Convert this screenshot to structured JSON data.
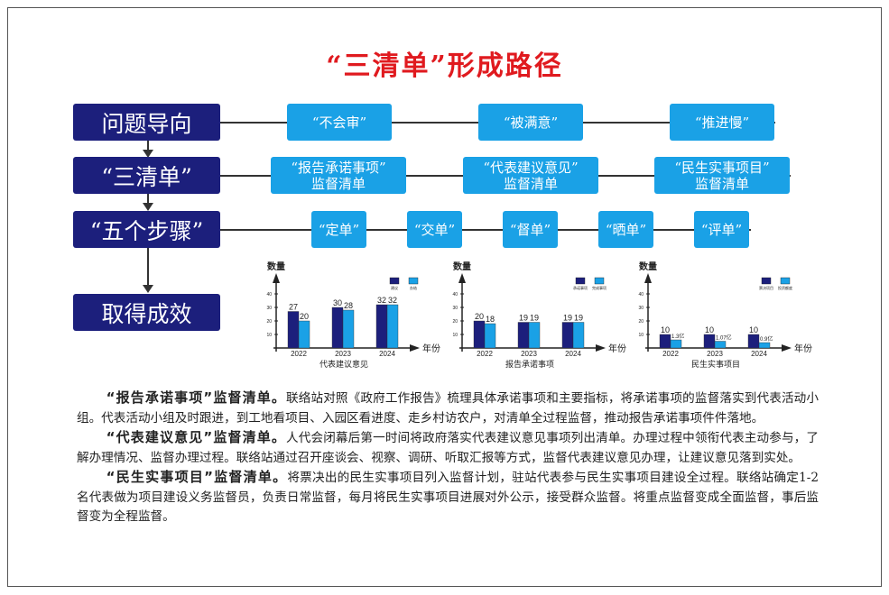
{
  "title": "“三清单”形成路径",
  "rows": [
    {
      "label": "问题导向",
      "items": [
        [
          "“不会审”"
        ],
        [
          "“被满意”"
        ],
        [
          "“推进慢”"
        ]
      ]
    },
    {
      "label": "“三清单”",
      "items": [
        [
          "“报告承诺事项”",
          "监督清单"
        ],
        [
          "“代表建议意见”",
          "监督清单"
        ],
        [
          "“民生实事项目”",
          "监督清单"
        ]
      ]
    },
    {
      "label": "“五个步骤”",
      "items": [
        [
          "“定单”"
        ],
        [
          "“交单”"
        ],
        [
          "“督单”"
        ],
        [
          "“晒单”"
        ],
        [
          "“评单”"
        ]
      ]
    },
    {
      "label": "取得成效"
    }
  ],
  "colors": {
    "navy": "#1c1f7c",
    "blue": "#1aa1e6",
    "red": "#e01a1f"
  },
  "chart_data": [
    {
      "type": "bar",
      "title": "代表建议意见",
      "ylabel": "数量",
      "xlabel": "年份",
      "categories": [
        "2022",
        "2023",
        "2024"
      ],
      "ylim": [
        0,
        45
      ],
      "yticks": [
        10,
        20,
        30,
        40
      ],
      "series": [
        {
          "name": "建议",
          "values": [
            27,
            30,
            32
          ],
          "labels": [
            "27",
            "30",
            "32"
          ]
        },
        {
          "name": "办结",
          "values": [
            20,
            28,
            32
          ],
          "labels": [
            "20",
            "28",
            "32"
          ]
        }
      ]
    },
    {
      "type": "bar",
      "title": "报告承诺事项",
      "ylabel": "数量",
      "xlabel": "年份",
      "categories": [
        "2022",
        "2023",
        "2024"
      ],
      "ylim": [
        0,
        45
      ],
      "yticks": [
        10,
        20,
        30,
        40
      ],
      "series": [
        {
          "name": "承诺事项",
          "values": [
            20,
            19,
            19
          ],
          "labels": [
            "20",
            "19",
            "19"
          ]
        },
        {
          "name": "完成事项",
          "values": [
            18,
            19,
            19
          ],
          "labels": [
            "18",
            "19",
            "19"
          ]
        }
      ]
    },
    {
      "type": "bar",
      "title": "民生实事项目",
      "ylabel": "数量",
      "xlabel": "年份",
      "categories": [
        "2022",
        "2023",
        "2024"
      ],
      "ylim": [
        0,
        45
      ],
      "yticks": [
        10,
        20,
        30,
        40
      ],
      "series": [
        {
          "name": "票决项目",
          "values": [
            10,
            10,
            10
          ],
          "labels": [
            "10",
            "10",
            "10"
          ]
        },
        {
          "name": "投资额度",
          "values": [
            6,
            5,
            4
          ],
          "labels": [
            "1.3亿",
            "1.07亿",
            "0.9亿"
          ]
        }
      ]
    }
  ],
  "paragraphs": [
    {
      "lead": "“报告承诺事项”监督清单。",
      "body": "联络站对照《政府工作报告》梳理具体承诺事项和主要指标，将承诺事项的监督落实到代表活动小组。代表活动小组及时跟进，到工地看项目、入园区看进度、走乡村访农户，对清单全过程监督，推动报告承诺事项件件落地。"
    },
    {
      "lead": "“代表建议意见”监督清单。",
      "body": "人代会闭幕后第一时间将政府落实代表建议意见事项列出清单。办理过程中领衔代表主动参与，了解办理情况、监督办理过程。联络站通过召开座谈会、视察、调研、听取汇报等方式，监督代表建议意见办理，让建议意见落到实处。"
    },
    {
      "lead": "“民生实事项目”监督清单。",
      "body": "将票决出的民生实事项目列入监督计划，驻站代表参与民生实事项目建设全过程。联络站确定1-2名代表做为项目建设义务监督员，负责日常监督，每月将民生实事项目进展对外公示，接受群众监督。将重点监督变成全面监督，事后监督变为全程监督。"
    }
  ]
}
